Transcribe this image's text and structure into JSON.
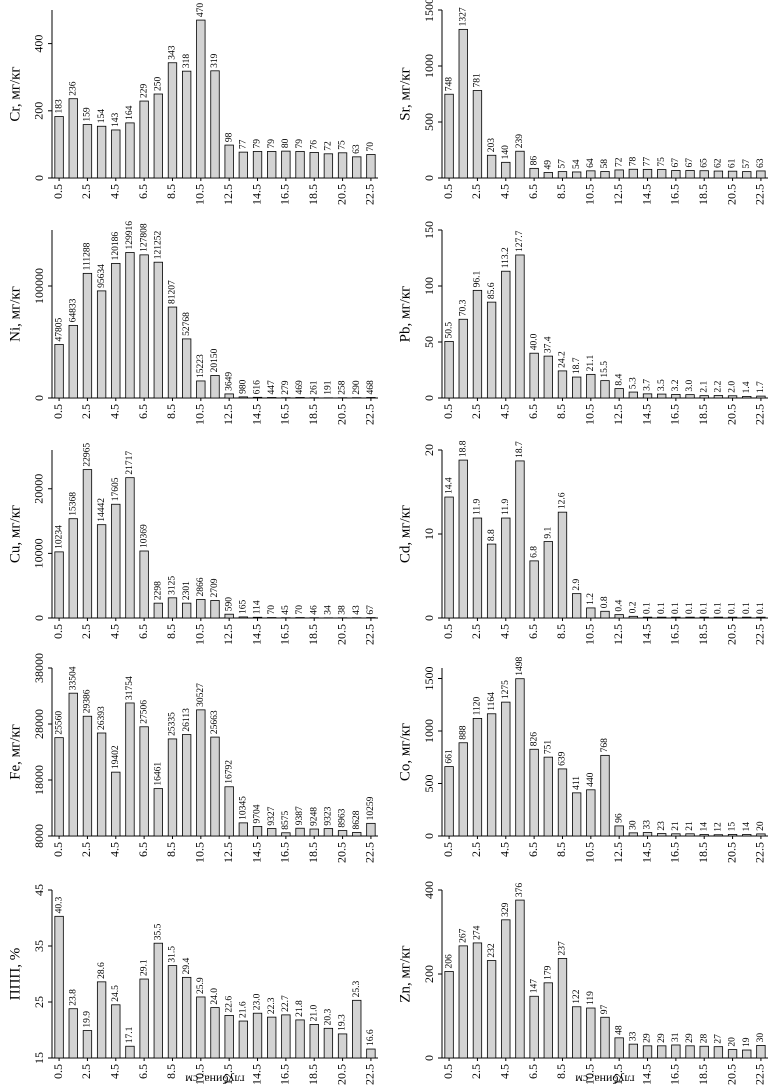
{
  "chart_data": [
    {
      "type": "bar",
      "ylabel": "Cr, мг/кг",
      "categories": [
        "0.5",
        null,
        "2.5",
        null,
        "4.5",
        null,
        "6.5",
        null,
        "8.5",
        null,
        "10.5",
        null,
        "12.5",
        null,
        "14.5",
        null,
        "16.5",
        null,
        "18.5",
        null,
        "20.5",
        null,
        "22.5"
      ],
      "values": [
        183,
        236,
        159,
        154,
        143,
        164,
        229,
        250,
        343,
        318,
        470,
        319,
        98,
        77,
        79,
        79,
        80,
        79,
        76,
        72,
        75,
        63,
        70
      ],
      "ylim": [
        0,
        500
      ],
      "yticks": [
        0,
        200,
        400
      ],
      "color": "#d3d3d3"
    },
    {
      "type": "bar",
      "ylabel": "Sr, мг/кг",
      "categories": [
        "0.5",
        null,
        "2.5",
        null,
        "4.5",
        null,
        "6.5",
        null,
        "8.5",
        null,
        "10.5",
        null,
        "12.5",
        null,
        "14.5",
        null,
        "16.5",
        null,
        "18.5",
        null,
        "20.5",
        null,
        "22.5"
      ],
      "values": [
        748,
        1327,
        781,
        203,
        140,
        239,
        86,
        49,
        57,
        54,
        64,
        58,
        72,
        78,
        77,
        75,
        67,
        67,
        65,
        62,
        61,
        57,
        63
      ],
      "ylim": [
        0,
        1500
      ],
      "yticks": [
        0,
        500,
        1000,
        1500
      ],
      "color": "#d3d3d3"
    },
    {
      "type": "bar",
      "ylabel": "Ni, мг/кг",
      "categories": [
        "0.5",
        null,
        "2.5",
        null,
        "4.5",
        null,
        "6.5",
        null,
        "8.5",
        null,
        "10.5",
        null,
        "12.5",
        null,
        "14.5",
        null,
        "16.5",
        null,
        "18.5",
        null,
        "20.5",
        null,
        "22.5"
      ],
      "values": [
        47805,
        64833,
        111288,
        95634,
        120186,
        129916,
        127808,
        121252,
        81207,
        52768,
        15223,
        20150,
        3649,
        980,
        616,
        447,
        279,
        469,
        261,
        191,
        258,
        290,
        468
      ],
      "ylim": [
        0,
        150000
      ],
      "yticks": [
        0,
        100000
      ],
      "color": "#d3d3d3"
    },
    {
      "type": "bar",
      "ylabel": "Pb, мг/кг",
      "categories": [
        "0.5",
        null,
        "2.5",
        null,
        "4.5",
        null,
        "6.5",
        null,
        "8.5",
        null,
        "10.5",
        null,
        "12.5",
        null,
        "14.5",
        null,
        "16.5",
        null,
        "18.5",
        null,
        "20.5",
        null,
        "22.5"
      ],
      "values": [
        50.5,
        70.3,
        96.1,
        85.6,
        113.2,
        127.7,
        40,
        37.4,
        24.2,
        18.7,
        21.1,
        15.5,
        8.4,
        5.3,
        3.7,
        3.5,
        3.2,
        3,
        2.1,
        2.2,
        2,
        1.4,
        1.7
      ],
      "value_labels": [
        "50.5",
        "70.3",
        "96.1",
        "85.6",
        "113.2",
        "127.7",
        "40.0",
        "37.4",
        "24.2",
        "18.7",
        "21.1",
        "15.5",
        "8.4",
        "5.3",
        "3.7",
        "3.5",
        "3.2",
        "3.0",
        "2.1",
        "2.2",
        "2.0",
        "1.4",
        "1.7"
      ],
      "ylim": [
        0,
        150
      ],
      "yticks": [
        0,
        50,
        100,
        150
      ],
      "color": "#d3d3d3"
    },
    {
      "type": "bar",
      "ylabel": "Cu, мг/кг",
      "categories": [
        "0.5",
        null,
        "2.5",
        null,
        "4.5",
        null,
        "6.5",
        null,
        "8.5",
        null,
        "10.5",
        null,
        "12.5",
        null,
        "14.5",
        null,
        "16.5",
        null,
        "18.5",
        null,
        "20.5",
        null,
        "22.5"
      ],
      "values": [
        10234,
        15368,
        22965,
        14442,
        17605,
        21717,
        10369,
        2298,
        3125,
        2301,
        2866,
        2709,
        590,
        165,
        114,
        70,
        45,
        70,
        46,
        34,
        38,
        43,
        67
      ],
      "ylim": [
        0,
        26000
      ],
      "yticks": [
        0,
        10000,
        20000
      ],
      "color": "#d3d3d3"
    },
    {
      "type": "bar",
      "ylabel": "Cd, мг/кг",
      "categories": [
        "0.5",
        null,
        "2.5",
        null,
        "4.5",
        null,
        "6.5",
        null,
        "8.5",
        null,
        "10.5",
        null,
        "12.5",
        null,
        "14.5",
        null,
        "16.5",
        null,
        "18.5",
        null,
        "20.5",
        null,
        "22.5"
      ],
      "values": [
        14.4,
        18.8,
        11.9,
        8.8,
        11.9,
        18.7,
        6.8,
        9.1,
        12.6,
        2.9,
        1.2,
        0.8,
        0.4,
        0.2,
        0.1,
        0.1,
        0.1,
        0.1,
        0.1,
        0.1,
        0.1,
        0.1,
        0.1
      ],
      "ylim": [
        0,
        20
      ],
      "yticks": [
        0,
        10,
        20
      ],
      "color": "#d3d3d3"
    },
    {
      "type": "bar",
      "ylabel": "Fe, мг/кг",
      "categories": [
        "0.5",
        null,
        "2.5",
        null,
        "4.5",
        null,
        "6.5",
        null,
        "8.5",
        null,
        "10.5",
        null,
        "12.5",
        null,
        "14.5",
        null,
        "16.5",
        null,
        "18.5",
        null,
        "20.5",
        null,
        "22.5"
      ],
      "values": [
        25560,
        33504,
        29386,
        26393,
        19402,
        31754,
        27506,
        16461,
        25335,
        26113,
        30527,
        25663,
        16792,
        10345,
        9704,
        9327,
        8575,
        9387,
        9248,
        9323,
        8963,
        8628,
        10259
      ],
      "ylim": [
        8000,
        38000
      ],
      "yticks": [
        8000,
        18000,
        28000,
        38000
      ],
      "color": "#d3d3d3"
    },
    {
      "type": "bar",
      "ylabel": "Co, мг/кг",
      "categories": [
        "0.5",
        null,
        "2.5",
        null,
        "4.5",
        null,
        "6.5",
        null,
        "8.5",
        null,
        "10.5",
        null,
        "12.5",
        null,
        "14.5",
        null,
        "16.5",
        null,
        "18.5",
        null,
        "20.5",
        null,
        "22.5"
      ],
      "values": [
        661,
        888,
        1120,
        1164,
        1275,
        1498,
        826,
        751,
        639,
        411,
        440,
        768,
        96,
        30,
        33,
        23,
        21,
        21,
        14,
        12,
        15,
        14,
        20
      ],
      "ylim": [
        0,
        1600
      ],
      "yticks": [
        0,
        500,
        1000,
        1500
      ],
      "color": "#d3d3d3"
    },
    {
      "type": "bar",
      "ylabel": "ППП, %",
      "xlabel": "глубина, см",
      "categories": [
        "0.5",
        null,
        "2.5",
        null,
        "4.5",
        null,
        "6.5",
        null,
        "8.5",
        null,
        "10.5",
        null,
        "12.5",
        null,
        "14.5",
        null,
        "16.5",
        null,
        "18.5",
        null,
        "20.5",
        null,
        "22.5"
      ],
      "values": [
        40.3,
        23.8,
        19.9,
        28.6,
        24.5,
        17.1,
        29.1,
        35.5,
        31.5,
        29.4,
        25.9,
        24,
        22.6,
        21.6,
        23,
        22.3,
        22.7,
        21.8,
        21,
        20.3,
        19.3,
        25.3,
        16.6
      ],
      "value_labels": [
        "40.3",
        "23.8",
        "19.9",
        "28.6",
        "24.5",
        "17.1",
        "29.1",
        "35.5",
        "31.5",
        "29.4",
        "25.9",
        "24.0",
        "22.6",
        "21.6",
        "23.0",
        "22.3",
        "22.7",
        "21.8",
        "21.0",
        "20.3",
        "19.3",
        "25.3",
        "16.6"
      ],
      "ylim": [
        15,
        45
      ],
      "yticks": [
        15,
        25,
        35,
        45
      ],
      "color": "#d3d3d3"
    },
    {
      "type": "bar",
      "ylabel": "Zn, мг/кг",
      "xlabel": "глубина, см",
      "categories": [
        "0.5",
        null,
        "2.5",
        null,
        "4.5",
        null,
        "6.5",
        null,
        "8.5",
        null,
        "10.5",
        null,
        "12.5",
        null,
        "14.5",
        null,
        "16.5",
        null,
        "18.5",
        null,
        "20.5",
        null,
        "22.5"
      ],
      "values": [
        206,
        267,
        274,
        232,
        329,
        376,
        147,
        179,
        237,
        122,
        119,
        97,
        48,
        33,
        29,
        29,
        31,
        29,
        28,
        27,
        20,
        19,
        30
      ],
      "ylim": [
        0,
        400
      ],
      "yticks": [
        0,
        200,
        400
      ],
      "color": "#d3d3d3"
    }
  ]
}
